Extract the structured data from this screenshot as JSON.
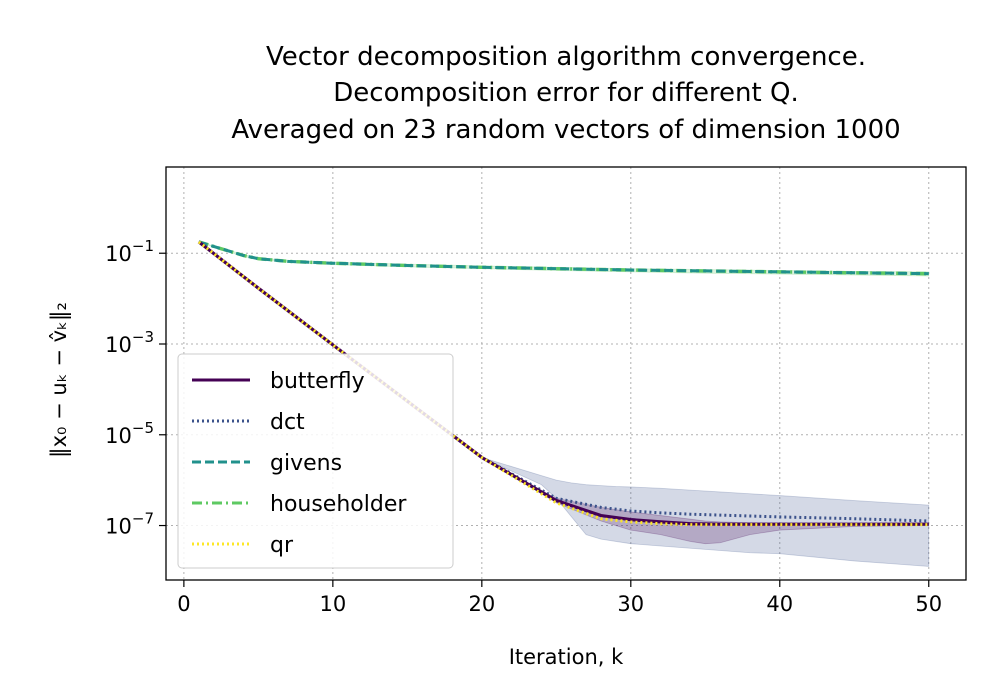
{
  "chart_data": {
    "type": "line",
    "title_lines": [
      "Vector decomposition algorithm convergence.",
      "Decomposition error for different Q.",
      "Averaged on 23 random vectors of dimension 1000"
    ],
    "xlabel": "Iteration, k",
    "ylabel": "‖x₀ − uₖ − v̂ₖ‖₂",
    "xlim": [
      -1.2,
      52.5
    ],
    "ylim_log10": [
      -8.2,
      0.9
    ],
    "x_ticks": [
      0,
      10,
      20,
      30,
      40,
      50
    ],
    "x_tick_labels": [
      "0",
      "10",
      "20",
      "30",
      "40",
      "50"
    ],
    "y_ticks_log10": [
      -7,
      -5,
      -3,
      -1
    ],
    "y_tick_labels": [
      {
        "base": "10",
        "exp": "−7"
      },
      {
        "base": "10",
        "exp": "−5"
      },
      {
        "base": "10",
        "exp": "−3"
      },
      {
        "base": "10",
        "exp": "−1"
      }
    ],
    "y_scale": "log",
    "grid": true,
    "legend_position": "lower-left",
    "colors": {
      "butterfly": "#440154",
      "dct": "#3b528b",
      "givens": "#21918c",
      "householder": "#5ec962",
      "qr": "#fde725"
    },
    "series": [
      {
        "name": "butterfly",
        "style": "solid",
        "x": [
          1,
          5,
          10,
          15,
          20,
          25,
          28,
          30,
          32,
          34,
          36,
          38,
          40,
          45,
          50
        ],
        "log10_y": [
          -0.75,
          -1.77,
          -3.02,
          -4.26,
          -5.5,
          -6.45,
          -6.78,
          -6.87,
          -6.92,
          -6.96,
          -6.97,
          -6.97,
          -6.97,
          -6.97,
          -6.97
        ]
      },
      {
        "name": "dct",
        "style": "dotted",
        "x": [
          1,
          5,
          10,
          15,
          20,
          25,
          28,
          30,
          32,
          34,
          36,
          38,
          40,
          45,
          50
        ],
        "log10_y": [
          -0.75,
          -1.77,
          -3.02,
          -4.26,
          -5.5,
          -6.4,
          -6.6,
          -6.68,
          -6.72,
          -6.75,
          -6.77,
          -6.79,
          -6.81,
          -6.85,
          -6.9
        ]
      },
      {
        "name": "givens",
        "style": "dashed",
        "x": [
          1,
          2,
          3,
          4,
          5,
          7,
          10,
          15,
          20,
          25,
          30,
          35,
          40,
          45,
          50
        ],
        "log10_y": [
          -0.75,
          -0.85,
          -0.95,
          -1.05,
          -1.12,
          -1.18,
          -1.22,
          -1.27,
          -1.31,
          -1.34,
          -1.37,
          -1.39,
          -1.41,
          -1.43,
          -1.45
        ]
      },
      {
        "name": "householder",
        "style": "dashdot",
        "x": [
          1,
          2,
          3,
          4,
          5,
          7,
          10,
          15,
          20,
          25,
          30,
          35,
          40,
          45,
          50
        ],
        "log10_y": [
          -0.75,
          -0.85,
          -0.95,
          -1.05,
          -1.12,
          -1.18,
          -1.22,
          -1.27,
          -1.31,
          -1.34,
          -1.37,
          -1.39,
          -1.41,
          -1.43,
          -1.45
        ]
      },
      {
        "name": "qr",
        "style": "dotted",
        "x": [
          1,
          5,
          10,
          15,
          20,
          25,
          28,
          30,
          32,
          34,
          36,
          38,
          40,
          45,
          50
        ],
        "log10_y": [
          -0.75,
          -1.77,
          -3.02,
          -4.26,
          -5.5,
          -6.5,
          -6.85,
          -6.92,
          -6.96,
          -6.98,
          -6.98,
          -6.98,
          -6.98,
          -6.98,
          -6.98
        ]
      }
    ],
    "bands": [
      {
        "series": "dct",
        "x": [
          1,
          5,
          10,
          15,
          20,
          24,
          25,
          26,
          27,
          28,
          29,
          30,
          32,
          34,
          36,
          38,
          40,
          45,
          50
        ],
        "log10_low": [
          -0.75,
          -1.77,
          -3.02,
          -4.26,
          -5.5,
          -6.1,
          -6.4,
          -6.8,
          -7.2,
          -7.3,
          -7.35,
          -7.4,
          -7.45,
          -7.5,
          -7.55,
          -7.6,
          -7.62,
          -7.78,
          -7.9
        ],
        "log10_high": [
          -0.75,
          -1.77,
          -3.02,
          -4.26,
          -5.5,
          -5.9,
          -6.0,
          -6.06,
          -6.1,
          -6.12,
          -6.14,
          -6.15,
          -6.18,
          -6.22,
          -6.26,
          -6.3,
          -6.34,
          -6.45,
          -6.55
        ]
      },
      {
        "series": "butterfly",
        "x": [
          1,
          5,
          10,
          15,
          20,
          25,
          28,
          30,
          32,
          34,
          35,
          36,
          38,
          40,
          45,
          50
        ],
        "log10_low": [
          -0.75,
          -1.77,
          -3.02,
          -4.26,
          -5.5,
          -6.5,
          -6.9,
          -7.1,
          -7.2,
          -7.35,
          -7.4,
          -7.38,
          -7.2,
          -7.1,
          -7.02,
          -7.0
        ],
        "log10_high": [
          -0.75,
          -1.77,
          -3.02,
          -4.26,
          -5.5,
          -6.4,
          -6.6,
          -6.7,
          -6.78,
          -6.86,
          -6.9,
          -6.92,
          -6.94,
          -6.95,
          -6.96,
          -6.96
        ]
      },
      {
        "series": "householder",
        "x": [
          1,
          2,
          3,
          4,
          5,
          7,
          10,
          15,
          20,
          25,
          30,
          35,
          40,
          45,
          50
        ],
        "log10_low": [
          -0.75,
          -0.86,
          -0.97,
          -1.07,
          -1.14,
          -1.2,
          -1.25,
          -1.3,
          -1.34,
          -1.38,
          -1.41,
          -1.44,
          -1.46,
          -1.48,
          -1.5
        ],
        "log10_high": [
          -0.75,
          -0.84,
          -0.93,
          -1.03,
          -1.1,
          -1.16,
          -1.2,
          -1.24,
          -1.28,
          -1.31,
          -1.34,
          -1.36,
          -1.38,
          -1.4,
          -1.41
        ]
      }
    ]
  }
}
